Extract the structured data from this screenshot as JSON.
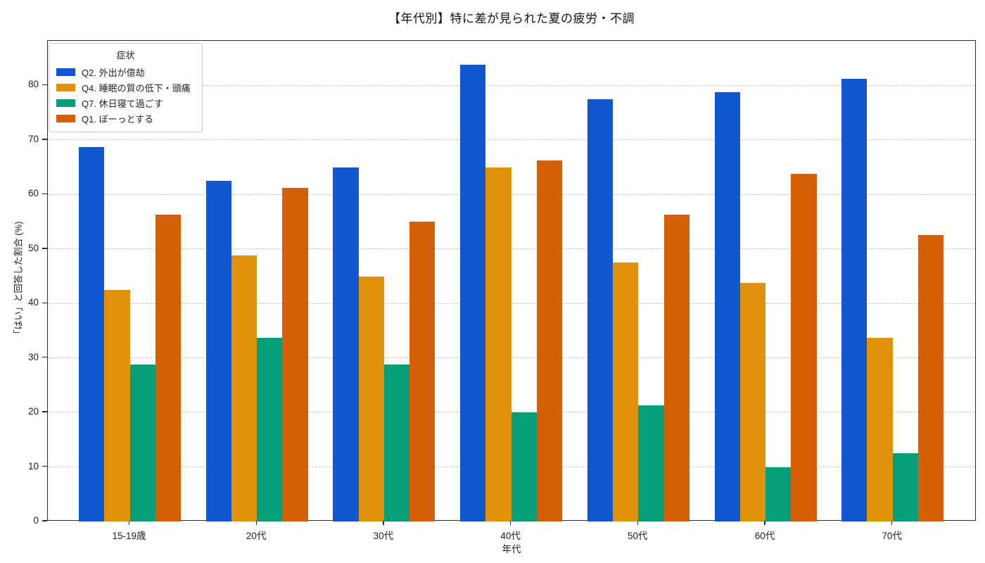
{
  "title": "【年代別】特に差が見られた夏の疲労・不調",
  "chart_data": {
    "type": "bar",
    "title": "【年代別】特に差が見られた夏の疲労・不調",
    "xlabel": "年代",
    "ylabel": "「はい」と回答した割合 (%)",
    "legend_title": "症状",
    "legend_position": "upper left",
    "grid": true,
    "categories": [
      "15-19歳",
      "20代",
      "30代",
      "40代",
      "50代",
      "60代",
      "70代"
    ],
    "series": [
      {
        "name": "Q2. 外出が億劫",
        "color": "#0f58cf",
        "values": [
          68.75,
          62.5,
          65.0,
          83.75,
          77.5,
          78.75,
          81.25
        ]
      },
      {
        "name": "Q4. 睡眠の質の低下・頭痛",
        "color": "#e1920b",
        "values": [
          42.5,
          48.75,
          45.0,
          65.0,
          47.5,
          43.75,
          33.75
        ]
      },
      {
        "name": "Q7. 休日寝て過ごす",
        "color": "#059e76",
        "values": [
          28.75,
          33.75,
          28.75,
          20.0,
          21.25,
          10.0,
          12.5
        ]
      },
      {
        "name": "Q1. ぼーっとする",
        "color": "#d55f04",
        "values": [
          56.25,
          61.25,
          55.0,
          66.25,
          56.25,
          63.75,
          52.5
        ]
      }
    ],
    "ylim": [
      0,
      88.2
    ],
    "yticks": [
      0,
      10,
      20,
      30,
      40,
      50,
      60,
      70,
      80
    ]
  }
}
